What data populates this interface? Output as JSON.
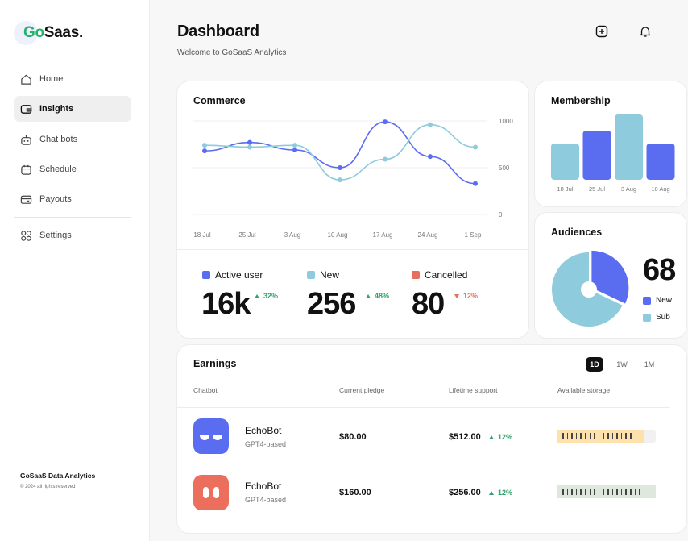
{
  "brand": {
    "logo_prefix": "Go",
    "logo_suffix": "Saas.",
    "accent": "#22b36b"
  },
  "sidebar": {
    "items": [
      {
        "label": "Home",
        "icon": "home-icon"
      },
      {
        "label": "Insights",
        "icon": "wallet-icon",
        "active": true
      },
      {
        "label": "Chat bots",
        "icon": "bot-icon"
      },
      {
        "label": "Schedule",
        "icon": "calendar-icon"
      },
      {
        "label": "Payouts",
        "icon": "card-icon"
      },
      {
        "label": "Settings",
        "icon": "grid-icon"
      }
    ],
    "footer_title": "GoSaaS Data Analytics",
    "footer_sub": "© 2024 all rights reserved"
  },
  "header": {
    "title": "Dashboard",
    "subtitle": "Welcome to GoSaaS Analytics",
    "icons": [
      "add-icon",
      "bell-icon"
    ]
  },
  "commerce": {
    "title": "Commerce",
    "stats": [
      {
        "label": "Active user",
        "value": "16k",
        "change": "32%",
        "direction": "up",
        "color": "#5a6cf0"
      },
      {
        "label": "New",
        "value": "256",
        "change": "48%",
        "direction": "up",
        "color": "#8ecbdc"
      },
      {
        "label": "Cancelled",
        "value": "80",
        "change": "12%",
        "direction": "down",
        "color": "#e4715f"
      }
    ]
  },
  "membership": {
    "title": "Membership"
  },
  "audiences": {
    "title": "Audiences",
    "big_value": "68",
    "legend": [
      "New",
      "Sub"
    ]
  },
  "earnings": {
    "title": "Earnings",
    "periods": [
      "1D",
      "1W",
      "1M"
    ],
    "active_period": "1D",
    "columns": [
      "Chatbot",
      "Current pledge",
      "Lifetime support",
      "Available storage"
    ],
    "rows": [
      {
        "name": "EchoBot",
        "model": "GPT4-based",
        "pledge": "$80.00",
        "support": "$512.00",
        "change": "12%",
        "avatar_color": "#5a6cf0",
        "storage_color": "#fde2ad",
        "storage_fill": 0.88
      },
      {
        "name": "EchoBot",
        "model": "GPT4-based",
        "pledge": "$160.00",
        "support": "$256.00",
        "change": "12%",
        "avatar_color": "#ec6e5c",
        "storage_color": "#dfe8dc",
        "storage_fill": 1.0
      }
    ]
  },
  "chart_data": [
    {
      "type": "line",
      "title": "Commerce",
      "x": [
        "18 Jul",
        "25 Jul",
        "3 Aug",
        "10 Aug",
        "17 Aug",
        "24 Aug",
        "1 Sep"
      ],
      "yticks": [
        0,
        500,
        1000
      ],
      "ylim": [
        0,
        1000
      ],
      "grid": true,
      "series": [
        {
          "values": [
            680,
            770,
            690,
            500,
            990,
            620,
            330
          ],
          "color": "#5a6cf0"
        },
        {
          "values": [
            740,
            720,
            740,
            370,
            590,
            960,
            720
          ],
          "color": "#8ecbdc"
        }
      ]
    },
    {
      "type": "bar",
      "title": "Membership",
      "categories": [
        "18 Jul",
        "25 Jul",
        "3 Aug",
        "10 Aug"
      ],
      "values": [
        45,
        61,
        81,
        45
      ],
      "colors": [
        "#8ecbdc",
        "#5a6cf0",
        "#8ecbdc",
        "#5a6cf0"
      ]
    },
    {
      "type": "pie",
      "title": "Audiences",
      "labels": [
        "New",
        "Sub"
      ],
      "values": [
        32,
        68
      ],
      "colors": [
        "#5a6cf0",
        "#8ecbdc"
      ]
    }
  ]
}
